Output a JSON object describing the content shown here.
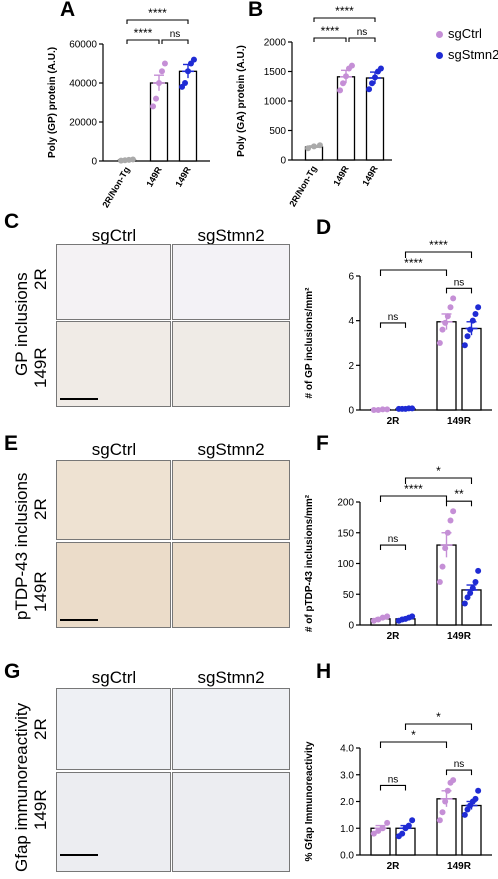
{
  "colors": {
    "sgCtrl": "#c58fd6",
    "sgStmn2": "#1f2bd4",
    "nontg": "#aaaaaa"
  },
  "legend": [
    {
      "label": "sgCtrl",
      "color": "#c58fd6"
    },
    {
      "label": "sgStmn2",
      "color": "#1f2bd4"
    }
  ],
  "panels": {
    "A": "A",
    "B": "B",
    "C": "C",
    "D": "D",
    "E": "E",
    "F": "F",
    "G": "G",
    "H": "H"
  },
  "images": {
    "C": {
      "col1": "sgCtrl",
      "col2": "sgStmn2",
      "row1": "2R",
      "row2": "149R",
      "side": "GP inclusions"
    },
    "E": {
      "col1": "sgCtrl",
      "col2": "sgStmn2",
      "row1": "2R",
      "row2": "149R",
      "side": "pTDP-43  inclusions"
    },
    "G": {
      "col1": "sgCtrl",
      "col2": "sgStmn2",
      "row1": "2R",
      "row2": "149R",
      "side": "Gfap immunoreactivity"
    }
  },
  "chart_data": [
    {
      "id": "A",
      "type": "bar",
      "ylabel": "Poly (GP) protein (A.U.)",
      "categories": [
        "2R/Non-Tg",
        "149R",
        "149R"
      ],
      "bar_groups": [
        "nontg",
        "sgCtrl",
        "sgStmn2"
      ],
      "values": [
        500,
        40000,
        46000
      ],
      "errors": [
        300,
        4000,
        3500
      ],
      "points": [
        [
          200,
          400,
          600,
          800
        ],
        [
          28000,
          32000,
          40000,
          46000,
          50000
        ],
        [
          38000,
          40000,
          46000,
          50000,
          52000
        ]
      ],
      "ylim": [
        0,
        60000
      ],
      "yticks": [
        "0",
        "20000",
        "40000",
        "60000"
      ],
      "sig": [
        {
          "text": "****",
          "from": 0,
          "to": 1
        },
        {
          "text": "****",
          "from": 0,
          "to": 2
        },
        {
          "text": "ns",
          "from": 1,
          "to": 2
        }
      ]
    },
    {
      "id": "B",
      "type": "bar",
      "ylabel": "Poly (GA) protein (A.U.)",
      "categories": [
        "2R/Non-Tg",
        "149R",
        "149R"
      ],
      "bar_groups": [
        "nontg",
        "sgCtrl",
        "sgStmn2"
      ],
      "values": [
        220,
        1410,
        1390
      ],
      "errors": [
        20,
        110,
        100
      ],
      "points": [
        [
          200,
          230,
          250
        ],
        [
          1180,
          1300,
          1420,
          1550,
          1600
        ],
        [
          1200,
          1300,
          1400,
          1500,
          1550
        ]
      ],
      "ylim": [
        0,
        2000
      ],
      "yticks": [
        "0",
        "500",
        "1000",
        "1500",
        "2000"
      ],
      "sig": [
        {
          "text": "****",
          "from": 0,
          "to": 1
        },
        {
          "text": "****",
          "from": 0,
          "to": 2
        },
        {
          "text": "ns",
          "from": 1,
          "to": 2
        }
      ]
    },
    {
      "id": "D",
      "type": "bar",
      "ylabel": "# of GP inclusions/mm²",
      "groups": [
        "2R",
        "149R"
      ],
      "series": [
        {
          "name": "sgCtrl",
          "values": [
            0.02,
            3.95
          ],
          "errors": [
            0.01,
            0.35
          ],
          "points": [
            [
              0,
              0,
              0.03,
              0.03
            ],
            [
              3.0,
              3.6,
              3.9,
              4.2,
              4.6,
              5.0
            ]
          ]
        },
        {
          "name": "sgStmn2",
          "values": [
            0.05,
            3.65
          ],
          "errors": [
            0.01,
            0.3
          ],
          "points": [
            [
              0.05,
              0.05,
              0.05,
              0.07,
              0.07
            ],
            [
              2.9,
              3.3,
              3.6,
              4.0,
              4.3,
              4.6
            ]
          ]
        }
      ],
      "ylim": [
        0,
        6
      ],
      "yticks": [
        "0",
        "2",
        "4",
        "6"
      ],
      "sig": [
        {
          "text": "ns",
          "group": 0
        },
        {
          "text": "ns",
          "group": 1
        },
        {
          "text": "****",
          "span": "2R-sgCtrl:149R-sgCtrl"
        },
        {
          "text": "****",
          "span": "2R-sgStmn2:149R-sgStmn2"
        }
      ]
    },
    {
      "id": "F",
      "type": "bar",
      "ylabel": "# of pTDP-43 inclusions/mm²",
      "groups": [
        "2R",
        "149R"
      ],
      "series": [
        {
          "name": "sgCtrl",
          "values": [
            10,
            130
          ],
          "errors": [
            2,
            20
          ],
          "points": [
            [
              7,
              9,
              12,
              14
            ],
            [
              70,
              95,
              125,
              150,
              170,
              185
            ]
          ]
        },
        {
          "name": "sgStmn2",
          "values": [
            10,
            57
          ],
          "errors": [
            2,
            8
          ],
          "points": [
            [
              7,
              9,
              10,
              12,
              14
            ],
            [
              35,
              45,
              52,
              60,
              70,
              88
            ]
          ]
        }
      ],
      "ylim": [
        0,
        200
      ],
      "yticks": [
        "0",
        "50",
        "100",
        "150",
        "200"
      ],
      "sig": [
        {
          "text": "ns",
          "group": 0
        },
        {
          "text": "**",
          "group": 1
        },
        {
          "text": "****",
          "span": "2R-sgCtrl:149R-sgCtrl"
        },
        {
          "text": "*",
          "span": "2R-sgStmn2:149R-sgStmn2"
        }
      ]
    },
    {
      "id": "H",
      "type": "bar",
      "ylabel": "% Gfap Immunoreactivity",
      "groups": [
        "2R",
        "149R"
      ],
      "series": [
        {
          "name": "sgCtrl",
          "values": [
            1.0,
            2.1
          ],
          "errors": [
            0.1,
            0.3
          ],
          "points": [
            [
              0.8,
              0.9,
              1.0,
              1.2
            ],
            [
              1.3,
              1.6,
              2.0,
              2.4,
              2.7,
              2.8
            ]
          ]
        },
        {
          "name": "sgStmn2",
          "values": [
            1.0,
            1.85
          ],
          "errors": [
            0.1,
            0.15
          ],
          "points": [
            [
              0.7,
              0.8,
              1.0,
              1.1,
              1.3
            ],
            [
              1.5,
              1.7,
              1.85,
              2.0,
              2.1,
              2.4
            ]
          ]
        }
      ],
      "ylim": [
        0,
        4
      ],
      "yticks": [
        "0.0",
        "1.0",
        "2.0",
        "3.0",
        "4.0"
      ],
      "sig": [
        {
          "text": "ns",
          "group": 0
        },
        {
          "text": "ns",
          "group": 1
        },
        {
          "text": "*",
          "span": "2R-sgCtrl:149R-sgCtrl"
        },
        {
          "text": "*",
          "span": "2R-sgStmn2:149R-sgStmn2"
        }
      ]
    }
  ]
}
